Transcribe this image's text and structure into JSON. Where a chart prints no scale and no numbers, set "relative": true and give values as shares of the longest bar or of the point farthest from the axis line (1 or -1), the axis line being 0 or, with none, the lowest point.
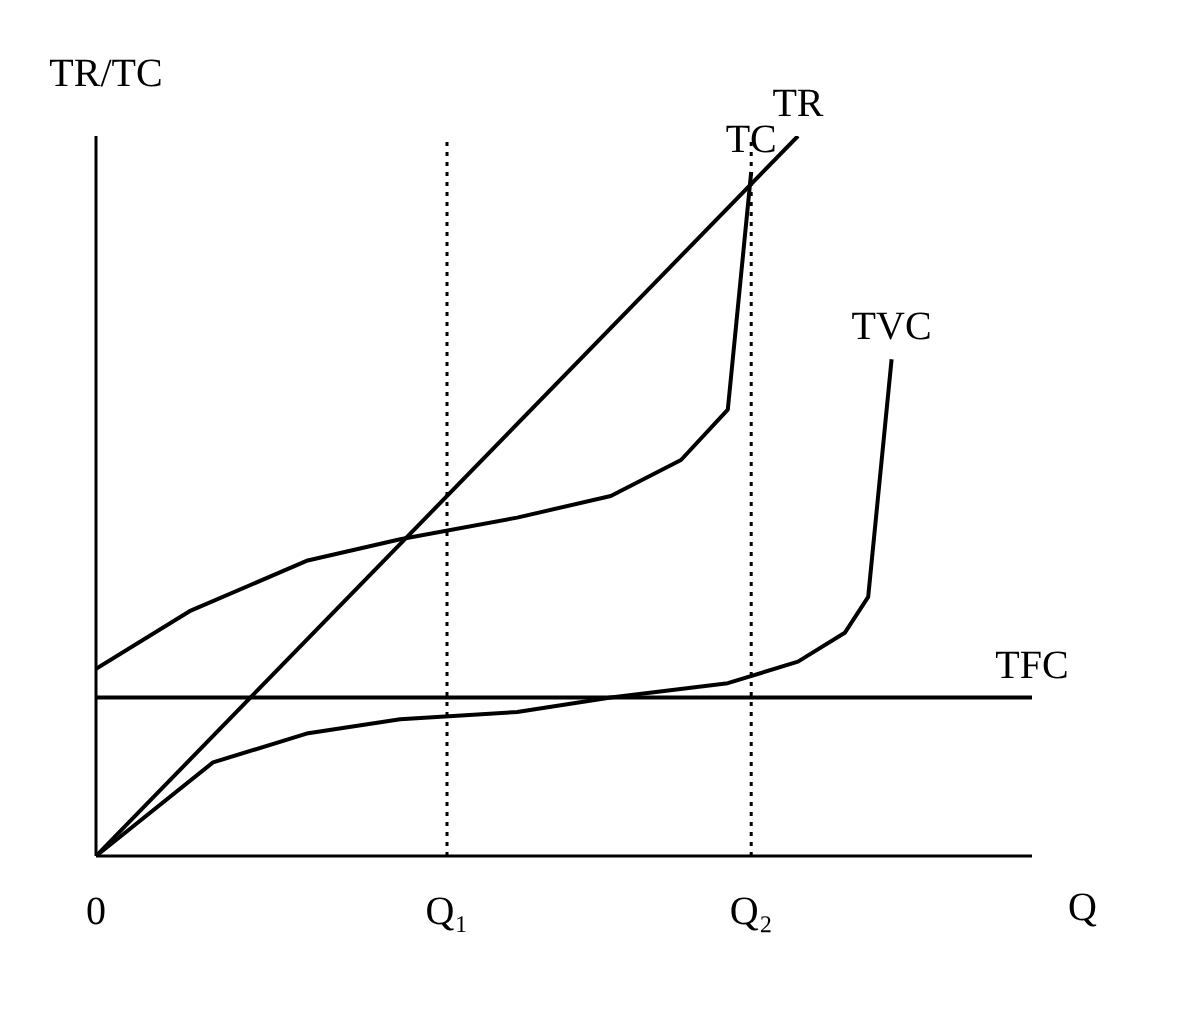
{
  "chart_data": {
    "type": "line",
    "relative": true,
    "ylabel": "TR/TC",
    "xlabel": "Q",
    "categories": [
      "0",
      null,
      null,
      null,
      null,
      null,
      null,
      null,
      null,
      null,
      null,
      null,
      null,
      null,
      null,
      "Q₁",
      null,
      null,
      null,
      null,
      null,
      null,
      null,
      null,
      null,
      null,
      null,
      null,
      "Q₂",
      null,
      null,
      null,
      null,
      null,
      null,
      null,
      null,
      null,
      null,
      null,
      null
    ],
    "series": [
      {
        "name": "TR",
        "color": "#000000",
        "values": [
          0,
          null,
          null,
          null,
          null,
          null,
          null,
          null,
          null,
          null,
          null,
          null,
          null,
          null,
          null,
          null,
          null,
          null,
          null,
          null,
          null,
          null,
          null,
          null,
          null,
          null,
          null,
          null,
          null,
          null,
          1,
          null,
          null,
          null,
          null,
          null,
          null,
          null,
          null,
          null,
          null
        ]
      },
      {
        "name": "TC",
        "color": "#000000",
        "values": [
          0.26,
          null,
          null,
          null,
          0.34,
          null,
          null,
          null,
          null,
          0.41,
          null,
          null,
          null,
          0.44,
          null,
          null,
          null,
          null,
          0.47,
          null,
          null,
          null,
          0.5,
          null,
          null,
          0.55,
          null,
          0.62,
          0.95,
          null,
          null,
          null,
          null,
          null,
          null,
          null,
          null,
          null,
          null,
          null,
          null
        ]
      },
      {
        "name": "TVC",
        "color": "#000000",
        "values": [
          0,
          null,
          null,
          null,
          null,
          0.13,
          null,
          null,
          null,
          0.17,
          null,
          null,
          null,
          0.19,
          null,
          null,
          null,
          null,
          0.2,
          null,
          null,
          null,
          0.22,
          null,
          null,
          null,
          null,
          0.24,
          null,
          null,
          0.27,
          null,
          0.31,
          0.36,
          0.69,
          null,
          null,
          null,
          null,
          null,
          null
        ]
      },
      {
        "name": "TFC",
        "color": "#000000",
        "values": [
          0.22,
          null,
          null,
          null,
          null,
          null,
          null,
          null,
          null,
          null,
          null,
          null,
          null,
          null,
          null,
          null,
          null,
          null,
          null,
          null,
          null,
          null,
          null,
          null,
          null,
          null,
          null,
          null,
          null,
          null,
          null,
          null,
          null,
          null,
          null,
          null,
          null,
          null,
          null,
          null,
          0.22
        ]
      }
    ],
    "ref_lines": [
      {
        "axis": "x",
        "value": "Q₁",
        "line_style": "dotted",
        "color": "#000000"
      },
      {
        "axis": "x",
        "value": "Q₂",
        "line_style": "dotted",
        "color": "#000000"
      }
    ],
    "grid": false,
    "legend": false,
    "marker": "none",
    "line_style": "solid"
  }
}
